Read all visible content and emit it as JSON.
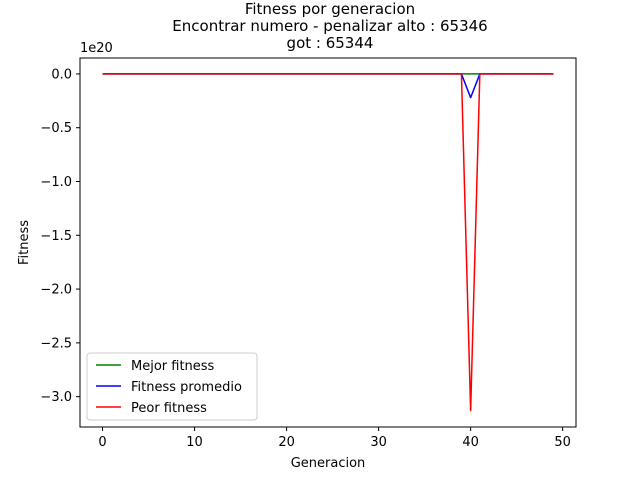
{
  "chart_data": {
    "type": "line",
    "title": [
      "Fitness por generacion",
      "Encontrar numero - penalizar alto : 65346",
      "got : 65344"
    ],
    "xlabel": "Generacion",
    "ylabel": "Fitness",
    "y_scale_label": "1e20",
    "xlim": [
      -2.45,
      51.45
    ],
    "ylim": [
      -3.282,
      0.148
    ],
    "x_ticks": [
      0,
      10,
      20,
      30,
      40,
      50
    ],
    "x_tick_labels": [
      "0",
      "10",
      "20",
      "30",
      "40",
      "50"
    ],
    "y_ticks": [
      0,
      -0.5,
      -1.0,
      -1.5,
      -2.0,
      -2.5,
      -3.0
    ],
    "y_tick_labels": [
      "0.0",
      "−0.5",
      "−1.0",
      "−1.5",
      "−2.0",
      "−2.5",
      "−3.0"
    ],
    "grid": false,
    "legend_position": "lower-left",
    "series": [
      {
        "name": "Mejor fitness",
        "color": "#008000",
        "x": [
          0,
          39,
          40,
          41,
          49
        ],
        "y": [
          0,
          0,
          0,
          0,
          0
        ]
      },
      {
        "name": "Fitness promedio",
        "color": "#0000ff",
        "x": [
          0,
          39,
          40,
          41,
          49
        ],
        "y": [
          0,
          0,
          -0.22,
          0,
          0
        ]
      },
      {
        "name": "Peor fitness",
        "color": "#ff0000",
        "x": [
          0,
          39,
          40,
          41,
          49
        ],
        "y": [
          0,
          0,
          -3.13,
          0,
          0
        ]
      }
    ]
  }
}
